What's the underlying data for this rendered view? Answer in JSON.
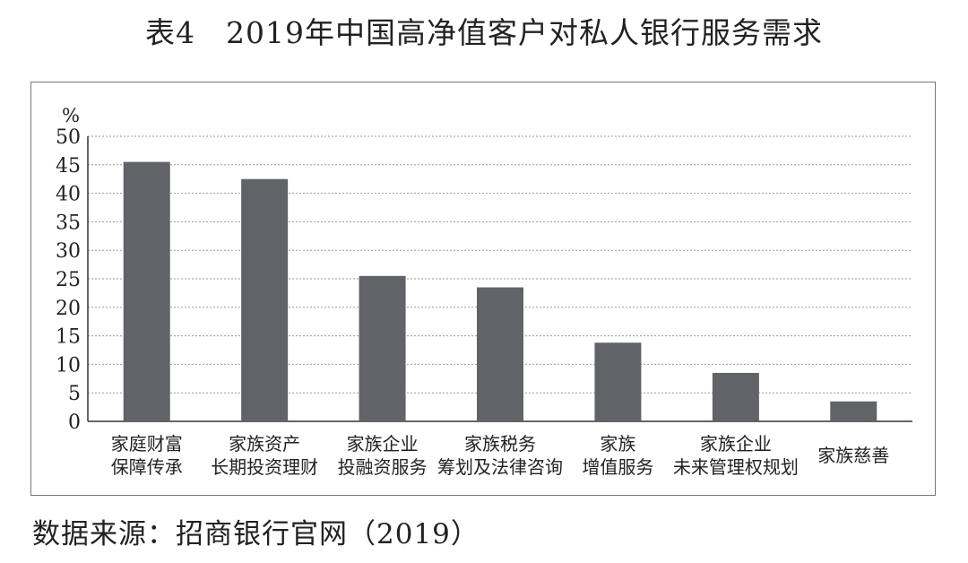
{
  "title": "表4　2019年中国高净值客户对私人银行服务需求",
  "source": "数据来源：招商银行官网（2019）",
  "chart_data": {
    "type": "bar",
    "unit_label": "%",
    "categories": [
      [
        "家庭财富",
        "保障传承"
      ],
      [
        "家族资产",
        "长期投资理财"
      ],
      [
        "家族企业",
        "投融资服务"
      ],
      [
        "家族税务",
        "筹划及法律咨询"
      ],
      [
        "家族",
        "增值服务"
      ],
      [
        "家族企业",
        "未来管理权规划"
      ],
      [
        "家族慈善"
      ]
    ],
    "values": [
      45.5,
      42.5,
      25.5,
      23.5,
      13.8,
      8.5,
      3.5
    ],
    "ylim": [
      0,
      50
    ],
    "yticks": [
      0,
      5,
      10,
      15,
      20,
      25,
      30,
      35,
      40,
      45,
      50
    ],
    "grid": true,
    "bar_color": "#626366",
    "grid_color": "#999999"
  }
}
